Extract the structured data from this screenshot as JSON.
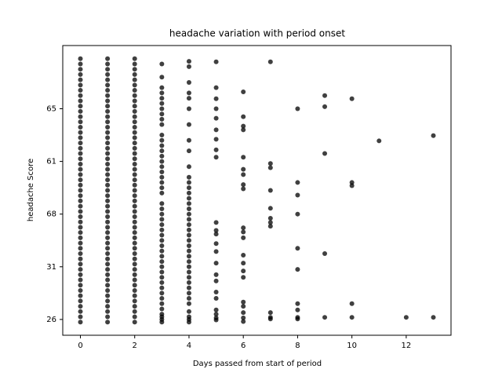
{
  "chart_data": {
    "type": "scatter",
    "title": "headache variation with period onset",
    "xlabel": "Days passed from start of period",
    "ylabel": "headache Score",
    "color": "#000000",
    "xlim": [
      -0.65,
      13.65
    ],
    "xticks": [
      0,
      2,
      4,
      6,
      8,
      10,
      12
    ],
    "ylim": [
      -0.3,
      5.2
    ],
    "yticks": [
      {
        "value": 0,
        "label": "26"
      },
      {
        "value": 1,
        "label": "31"
      },
      {
        "value": 2,
        "label": "68"
      },
      {
        "value": 3,
        "label": "61"
      },
      {
        "value": 4,
        "label": "65"
      }
    ],
    "x": [
      0,
      0,
      0,
      0,
      0,
      0,
      0,
      0,
      0,
      0,
      0,
      0,
      0,
      0,
      0,
      0,
      0,
      0,
      0,
      0,
      0,
      0,
      0,
      0,
      0,
      0,
      0,
      0,
      0,
      0,
      0,
      0,
      0,
      0,
      0,
      0,
      0,
      0,
      0,
      0,
      0,
      0,
      0,
      0,
      0,
      0,
      0,
      0,
      0,
      0,
      0,
      1,
      1,
      1,
      1,
      1,
      1,
      1,
      1,
      1,
      1,
      1,
      1,
      1,
      1,
      1,
      1,
      1,
      1,
      1,
      1,
      1,
      1,
      1,
      1,
      1,
      1,
      1,
      1,
      1,
      1,
      1,
      1,
      1,
      1,
      1,
      1,
      1,
      1,
      1,
      1,
      1,
      1,
      1,
      1,
      1,
      1,
      1,
      1,
      1,
      1,
      1,
      2,
      2,
      2,
      2,
      2,
      2,
      2,
      2,
      2,
      2,
      2,
      2,
      2,
      2,
      2,
      2,
      2,
      2,
      2,
      2,
      2,
      2,
      2,
      2,
      2,
      2,
      2,
      2,
      2,
      2,
      2,
      2,
      2,
      2,
      2,
      2,
      2,
      2,
      2,
      2,
      2,
      2,
      2,
      2,
      2,
      2,
      2,
      2,
      2,
      2,
      2,
      3,
      3,
      3,
      3,
      3,
      3,
      3,
      3,
      3,
      3,
      3,
      3,
      3,
      3,
      3,
      3,
      3,
      3,
      3,
      3,
      3,
      3,
      3,
      3,
      3,
      3,
      3,
      3,
      3,
      3,
      3,
      3,
      3,
      3,
      3,
      3,
      3,
      3,
      3,
      3,
      3,
      3,
      3,
      3,
      3,
      3,
      3,
      4,
      4,
      4,
      4,
      4,
      4,
      4,
      4,
      4,
      4,
      4,
      4,
      4,
      4,
      4,
      4,
      4,
      4,
      4,
      4,
      4,
      4,
      4,
      4,
      4,
      4,
      4,
      4,
      4,
      4,
      4,
      4,
      4,
      4,
      4,
      4,
      4,
      4,
      4,
      5,
      5,
      5,
      5,
      5,
      5,
      5,
      5,
      5,
      5,
      5,
      5,
      5,
      5,
      5,
      5,
      5,
      5,
      5,
      5,
      5,
      5,
      5,
      6,
      6,
      6,
      6,
      6,
      6,
      6,
      6,
      6,
      6,
      6,
      6,
      6,
      6,
      6,
      6,
      6,
      6,
      6,
      6,
      6,
      7,
      7,
      7,
      7,
      7,
      7,
      7,
      7,
      7,
      7,
      7,
      8,
      8,
      8,
      8,
      8,
      8,
      8,
      8,
      8,
      8,
      9,
      9,
      9,
      9,
      9,
      10,
      10,
      10,
      10,
      10,
      11,
      12,
      13,
      13
    ],
    "values": [
      -0.05,
      0.05,
      0.15,
      0.25,
      0.35,
      0.45,
      0.55,
      0.65,
      0.75,
      0.85,
      0.95,
      1.05,
      1.15,
      1.25,
      1.35,
      1.45,
      1.55,
      1.65,
      1.75,
      1.85,
      1.95,
      2.05,
      2.15,
      2.25,
      2.35,
      2.45,
      2.55,
      2.65,
      2.75,
      2.85,
      2.95,
      3.05,
      3.15,
      3.25,
      3.35,
      3.45,
      3.55,
      3.65,
      3.75,
      3.85,
      3.95,
      4.05,
      4.15,
      4.25,
      4.35,
      4.45,
      4.55,
      4.65,
      4.75,
      4.85,
      4.95,
      -0.05,
      0.05,
      0.15,
      0.25,
      0.35,
      0.45,
      0.55,
      0.65,
      0.75,
      0.85,
      0.95,
      1.05,
      1.15,
      1.25,
      1.35,
      1.45,
      1.55,
      1.65,
      1.75,
      1.85,
      1.95,
      2.05,
      2.15,
      2.25,
      2.35,
      2.45,
      2.55,
      2.65,
      2.75,
      2.85,
      2.95,
      3.05,
      3.15,
      3.25,
      3.35,
      3.45,
      3.55,
      3.65,
      3.75,
      3.85,
      3.95,
      4.05,
      4.15,
      4.25,
      4.35,
      4.45,
      4.55,
      4.65,
      4.75,
      4.85,
      4.95,
      -0.05,
      0.05,
      0.15,
      0.25,
      0.35,
      0.45,
      0.55,
      0.65,
      0.75,
      0.85,
      0.95,
      1.05,
      1.15,
      1.25,
      1.35,
      1.45,
      1.55,
      1.65,
      1.75,
      1.85,
      1.95,
      2.05,
      2.15,
      2.25,
      2.35,
      2.45,
      2.55,
      2.65,
      2.75,
      2.85,
      2.95,
      3.05,
      3.15,
      3.25,
      3.35,
      3.45,
      3.55,
      3.65,
      3.75,
      3.85,
      3.95,
      4.05,
      4.15,
      4.25,
      4.35,
      4.45,
      4.55,
      4.65,
      4.75,
      4.85,
      4.95,
      4.85,
      4.6,
      4.4,
      4.3,
      4.2,
      4.1,
      4.0,
      3.9,
      3.8,
      3.7,
      3.5,
      3.4,
      3.3,
      3.2,
      3.1,
      3.0,
      2.9,
      2.8,
      2.7,
      2.6,
      2.5,
      2.4,
      2.2,
      2.1,
      2.0,
      1.9,
      1.8,
      1.7,
      1.6,
      1.5,
      1.4,
      1.3,
      1.2,
      1.1,
      1.0,
      0.9,
      0.8,
      0.7,
      0.6,
      0.5,
      0.4,
      0.3,
      0.2,
      0.1,
      0.05,
      0,
      -0.05,
      4.9,
      4.8,
      4.5,
      4.3,
      4.2,
      4.0,
      3.7,
      3.4,
      3.2,
      2.9,
      2.7,
      2.6,
      2.5,
      2.4,
      2.3,
      2.2,
      2.1,
      2.0,
      1.9,
      1.8,
      1.7,
      1.6,
      1.5,
      1.4,
      1.3,
      1.2,
      1.1,
      1.0,
      0.9,
      0.8,
      0.7,
      0.6,
      0.5,
      0.4,
      0.3,
      0.15,
      0.05,
      0,
      -0.05,
      4.89,
      4.4,
      4.19,
      4.0,
      3.82,
      3.6,
      3.42,
      3.22,
      3.08,
      1.84,
      1.69,
      1.62,
      1.44,
      1.29,
      1.07,
      0.85,
      0.73,
      0.52,
      0.4,
      0.18,
      0.1,
      0.03,
      -0.01,
      4.32,
      3.85,
      3.67,
      3.6,
      3.08,
      2.85,
      2.75,
      2.56,
      2.48,
      1.74,
      1.66,
      1.55,
      1.22,
      1.07,
      0.92,
      0.8,
      0.33,
      0.25,
      0.13,
      0.03,
      -0.04,
      4.89,
      2.96,
      2.88,
      2.45,
      2.11,
      1.92,
      1.84,
      1.77,
      0.13,
      0.04,
      0.01,
      4.0,
      2.6,
      2.36,
      2.0,
      1.35,
      0.95,
      0.3,
      0.18,
      0.04,
      0.01,
      4.25,
      4.04,
      3.15,
      1.25,
      0.04,
      4.19,
      2.6,
      2.54,
      0.3,
      0.04,
      3.39,
      0.04,
      3.49,
      0.04
    ]
  }
}
